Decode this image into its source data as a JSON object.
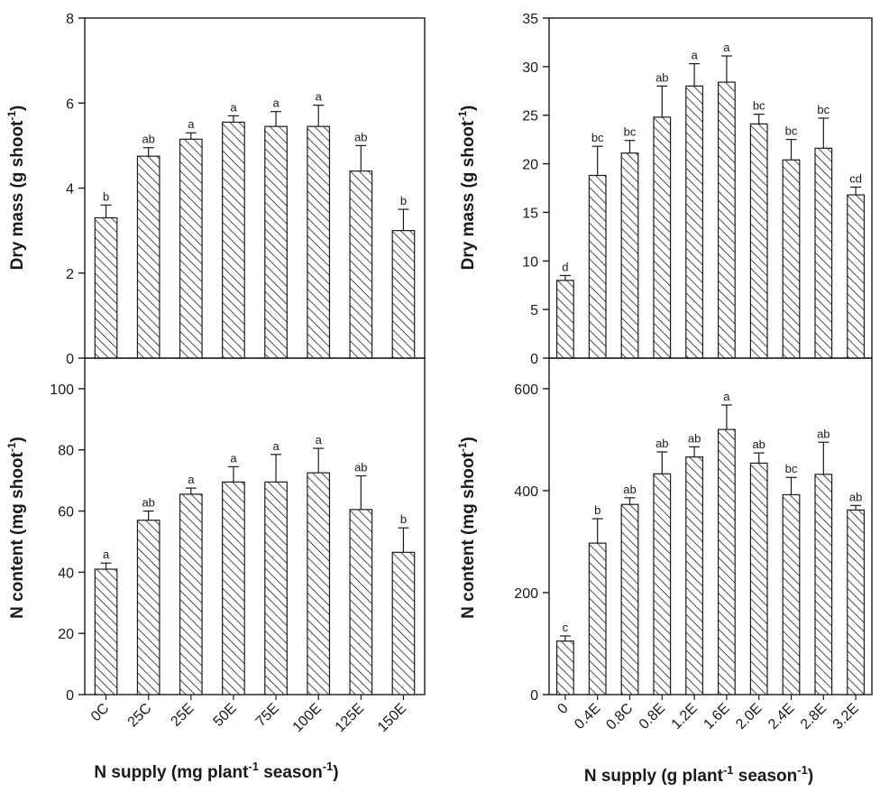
{
  "figure": {
    "left_xlabel": {
      "pre": "N supply (mg plant",
      "sup1": "-1",
      "mid": " season",
      "sup2": "-1",
      "post": ")"
    },
    "right_xlabel": {
      "pre": "N supply (g plant",
      "sup1": "-1",
      "mid": " season",
      "sup2": "-1",
      "post": ")"
    },
    "colors": {
      "axis": "#1a1a1a",
      "bar_fill": "#ffffff",
      "hatch": "#222222"
    }
  },
  "chart_data": [
    {
      "type": "bar",
      "id": "left-top",
      "ylabel": {
        "pre": "Dry mass (g shoot",
        "sup": "-1",
        "post": ")"
      },
      "ylim": [
        0,
        8
      ],
      "yticks": [
        "0",
        "2",
        "4",
        "6",
        "8"
      ],
      "yticks_values": [
        0,
        2,
        4,
        6,
        8
      ],
      "categories": [
        "0C",
        "25C",
        "25E",
        "50E",
        "75E",
        "100E",
        "125E",
        "150E"
      ],
      "values": [
        3.3,
        4.75,
        5.15,
        5.55,
        5.45,
        5.45,
        4.4,
        3.0
      ],
      "errors": [
        0.3,
        0.2,
        0.15,
        0.15,
        0.35,
        0.5,
        0.6,
        0.5
      ],
      "letters": [
        "b",
        "ab",
        "a",
        "a",
        "a",
        "a",
        "ab",
        "b"
      ],
      "show_xticks": false
    },
    {
      "type": "bar",
      "id": "left-bottom",
      "ylabel": {
        "pre": "N content (mg shoot",
        "sup": "-1",
        "post": ")"
      },
      "ylim": [
        0,
        110
      ],
      "yticks": [
        "0",
        "20",
        "40",
        "60",
        "80",
        "100"
      ],
      "yticks_values": [
        0,
        20,
        40,
        60,
        80,
        100
      ],
      "categories": [
        "0C",
        "25C",
        "25E",
        "50E",
        "75E",
        "100E",
        "125E",
        "150E"
      ],
      "values": [
        41,
        57,
        65.5,
        69.5,
        69.5,
        72.5,
        60.5,
        46.5
      ],
      "errors": [
        2,
        3,
        2,
        5,
        9,
        8,
        11,
        8
      ],
      "letters": [
        "a",
        "ab",
        "a",
        "a",
        "a",
        "a",
        "ab",
        "b"
      ],
      "show_xticks": true
    },
    {
      "type": "bar",
      "id": "right-top",
      "ylabel": {
        "pre": "Dry mass (g shoot",
        "sup": "-1",
        "post": ")"
      },
      "ylim": [
        0,
        35
      ],
      "yticks": [
        "0",
        "5",
        "10",
        "15",
        "20",
        "25",
        "30",
        "35"
      ],
      "yticks_values": [
        0,
        5,
        10,
        15,
        20,
        25,
        30,
        35
      ],
      "categories": [
        "0",
        "0.4E",
        "0.8C",
        "0.8E",
        "1.2E",
        "1.6E",
        "2.0E",
        "2.4E",
        "2.8E",
        "3.2E"
      ],
      "values": [
        8,
        18.8,
        21.1,
        24.8,
        28,
        28.4,
        24.1,
        20.4,
        21.6,
        16.8
      ],
      "errors": [
        0.5,
        3,
        1.3,
        3.2,
        2.3,
        2.7,
        1,
        2.1,
        3.1,
        0.8
      ],
      "letters": [
        "d",
        "bc",
        "bc",
        "ab",
        "a",
        "a",
        "bc",
        "bc",
        "bc",
        "cd"
      ],
      "show_xticks": false
    },
    {
      "type": "bar",
      "id": "right-bottom",
      "ylabel": {
        "pre": "N content (mg shoot",
        "sup": "-1",
        "post": ")"
      },
      "ylim": [
        0,
        660
      ],
      "yticks": [
        "0",
        "200",
        "400",
        "600"
      ],
      "yticks_values": [
        0,
        200,
        400,
        600
      ],
      "categories": [
        "0",
        "0.4E",
        "0.8C",
        "0.8E",
        "1.2E",
        "1.6E",
        "2.0E",
        "2.4E",
        "2.8E",
        "3.2E"
      ],
      "values": [
        105,
        297,
        373,
        433,
        466,
        520,
        454,
        392,
        432,
        362
      ],
      "errors": [
        10,
        48,
        13,
        43,
        20,
        48,
        20,
        34,
        63,
        9
      ],
      "letters": [
        "c",
        "b",
        "ab",
        "ab",
        "ab",
        "a",
        "ab",
        "bc",
        "ab",
        "ab"
      ],
      "show_xticks": true
    }
  ]
}
